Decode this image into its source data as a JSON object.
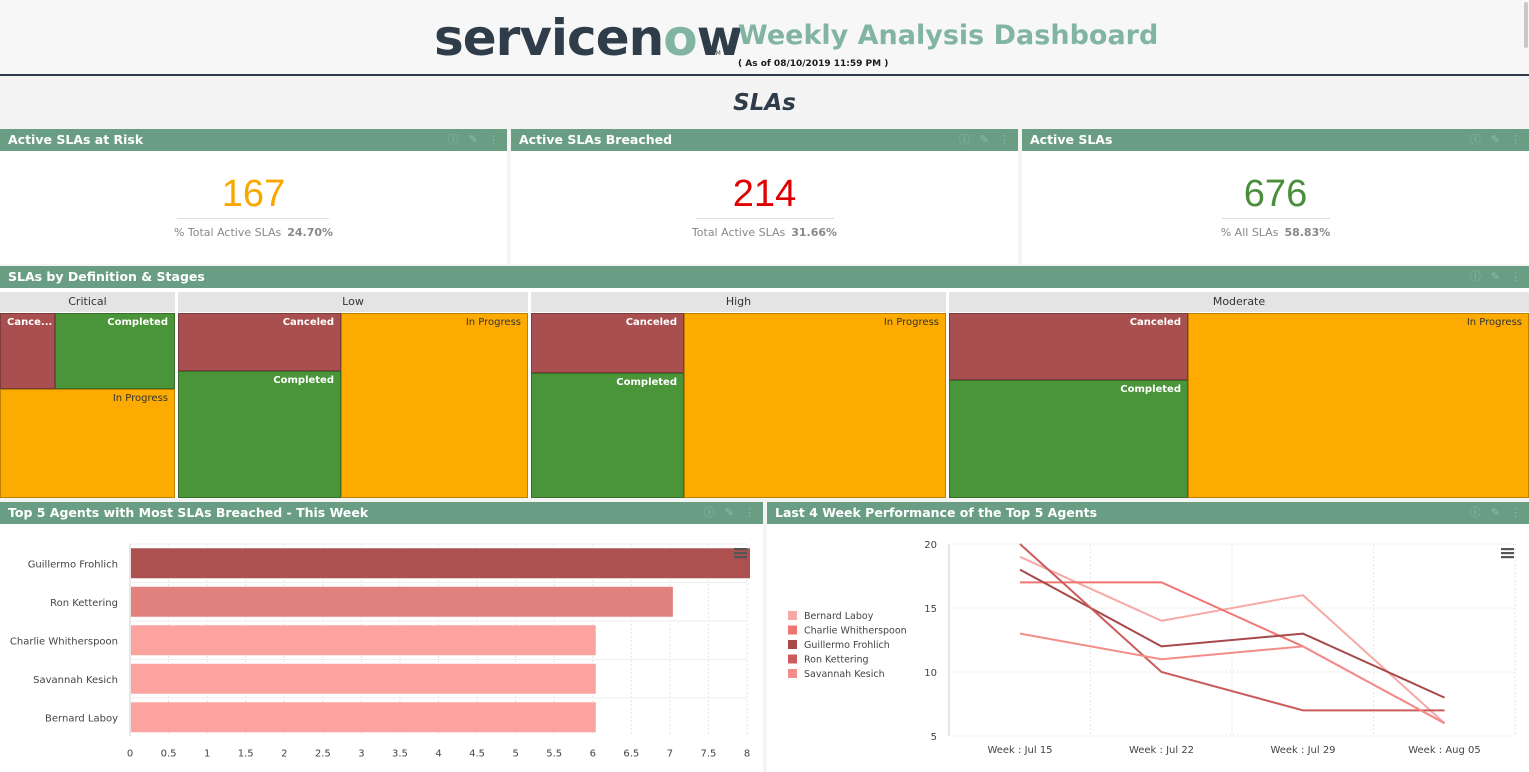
{
  "header": {
    "logo_text_a": "servicen",
    "logo_text_o": "o",
    "logo_text_b": "w",
    "logo_tm": "TM",
    "title": "Weekly Analysis Dashboard",
    "as_of": "( As of 08/10/2019 11:59 PM )"
  },
  "section_title": "SLAs",
  "kpis": [
    {
      "title": "Active SLAs at Risk",
      "value": "167",
      "sub_label": "% Total Active SLAs",
      "sub_value": "24.70%",
      "color": "#f9a800"
    },
    {
      "title": "Active SLAs Breached",
      "value": "214",
      "sub_label": "Total Active SLAs",
      "sub_value": "31.66%",
      "color": "#e00000"
    },
    {
      "title": "Active SLAs",
      "value": "676",
      "sub_label": "% All SLAs",
      "sub_value": "58.83%",
      "color": "#4a8d3a"
    }
  ],
  "treemap": {
    "title": "SLAs by Definition & Stages",
    "groups": [
      "Critical",
      "Low",
      "High",
      "Moderate"
    ],
    "labels": {
      "critical_canceled": "Cance...",
      "critical_completed": "Completed",
      "critical_inprogress": "In Progress",
      "low_canceled": "Canceled",
      "low_completed": "Completed",
      "low_inprogress": "In Progress",
      "high_canceled": "Canceled",
      "high_completed": "Completed",
      "high_inprogress": "In Progress",
      "moderate_canceled": "Canceled",
      "moderate_completed": "Completed",
      "moderate_inprogress": "In Progress"
    }
  },
  "bar_widget": {
    "title": "Top 5 Agents with Most SLAs Breached - This Week"
  },
  "line_widget": {
    "title": "Last 4 Week Performance of the Top 5 Agents"
  },
  "colors": {
    "header_green": "#6a9e84",
    "accent": "#81b5a1"
  },
  "chart_data": [
    {
      "type": "bar",
      "orientation": "horizontal",
      "title": "Top 5 Agents with Most SLAs Breached - This Week",
      "categories": [
        "Guillermo Frohlich",
        "Ron Kettering",
        "Charlie Whitherspoon",
        "Savannah Kesich",
        "Bernard Laboy"
      ],
      "values": [
        8,
        7,
        6,
        6,
        6
      ],
      "colors": [
        "#ad5050",
        "#e0817d",
        "#fca39f",
        "#fca39f",
        "#fca39f"
      ],
      "xlim": [
        0,
        8
      ],
      "xticks": [
        "0",
        "0.5",
        "1",
        "1.5",
        "2",
        "2.5",
        "3",
        "3.5",
        "4",
        "4.5",
        "5",
        "5.5",
        "6",
        "6.5",
        "7",
        "7.5",
        "8"
      ]
    },
    {
      "type": "line",
      "title": "Last 4 Week Performance of the Top 5 Agents",
      "x": [
        "Week : Jul 15",
        "Week : Jul 22",
        "Week : Jul 29",
        "Week : Aug 05"
      ],
      "ylim": [
        5,
        20
      ],
      "yticks": [
        "20",
        "15",
        "10",
        "5"
      ],
      "legend": "left",
      "series": [
        {
          "name": "Bernard Laboy",
          "values": [
            19,
            14,
            16,
            6
          ],
          "color": "#f7a9a6"
        },
        {
          "name": "Charlie Whitherspoon",
          "values": [
            17,
            17,
            12,
            6
          ],
          "color": "#ef7571"
        },
        {
          "name": "Guillermo Frohlich",
          "values": [
            18,
            12,
            13,
            8
          ],
          "color": "#a84848"
        },
        {
          "name": "Ron Kettering",
          "values": [
            20,
            10,
            7,
            7
          ],
          "color": "#cc5b5b"
        },
        {
          "name": "Savannah Kesich",
          "values": [
            13,
            11,
            12,
            6
          ],
          "color": "#f48d89"
        }
      ]
    }
  ]
}
